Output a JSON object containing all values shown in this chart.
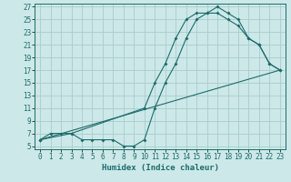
{
  "xlabel": "Humidex (Indice chaleur)",
  "bg_color": "#cce8e8",
  "line_color": "#1e6b6b",
  "grid_color": "#aacccc",
  "xlim": [
    -0.5,
    23.5
  ],
  "ylim": [
    4.5,
    27.5
  ],
  "xticks": [
    0,
    1,
    2,
    3,
    4,
    5,
    6,
    7,
    8,
    9,
    10,
    11,
    12,
    13,
    14,
    15,
    16,
    17,
    18,
    19,
    20,
    21,
    22,
    23
  ],
  "yticks": [
    5,
    7,
    9,
    11,
    13,
    15,
    17,
    19,
    21,
    23,
    25,
    27
  ],
  "line1_x": [
    0,
    1,
    2,
    3,
    4,
    5,
    6,
    7,
    8,
    9,
    10,
    11,
    12,
    13,
    14,
    15,
    16,
    17,
    18,
    19,
    20,
    21,
    22,
    23
  ],
  "line1_y": [
    6,
    7,
    7,
    7,
    6,
    6,
    6,
    6,
    5,
    5,
    6,
    11,
    15,
    18,
    22,
    25,
    26,
    27,
    26,
    25,
    22,
    21,
    18,
    17
  ],
  "line2_x": [
    0,
    3,
    10,
    11,
    12,
    13,
    14,
    15,
    16,
    17,
    18,
    19,
    20,
    21,
    22,
    23
  ],
  "line2_y": [
    6,
    7,
    11,
    15,
    18,
    22,
    25,
    26,
    26,
    26,
    25,
    24,
    22,
    21,
    18,
    17
  ],
  "line3_x": [
    0,
    23
  ],
  "line3_y": [
    6,
    17
  ],
  "tick_fontsize": 5.5,
  "xlabel_fontsize": 6.5
}
